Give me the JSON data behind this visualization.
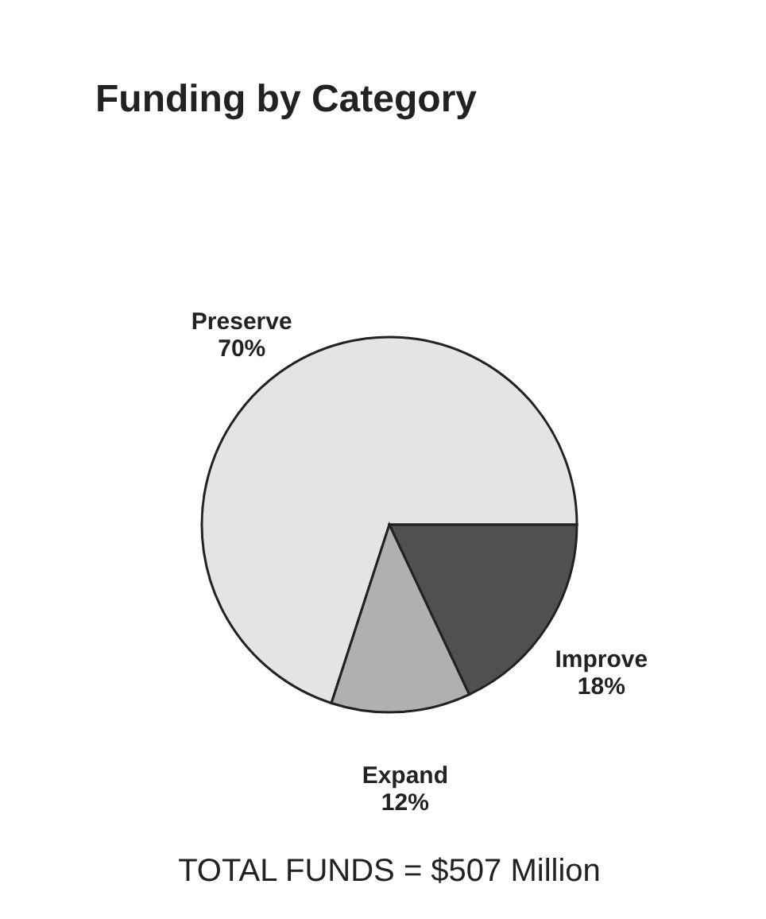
{
  "chart_data": {
    "type": "pie",
    "title": "Funding by Category",
    "categories": [
      "Preserve",
      "Improve",
      "Expand"
    ],
    "values": [
      70,
      18,
      12
    ],
    "colors": [
      "#e4e4e4",
      "#505050",
      "#b0b0b0"
    ],
    "value_labels": [
      "70%",
      "18%",
      "12%"
    ],
    "annotations": [
      "TOTAL FUNDS = $507 Million"
    ]
  }
}
